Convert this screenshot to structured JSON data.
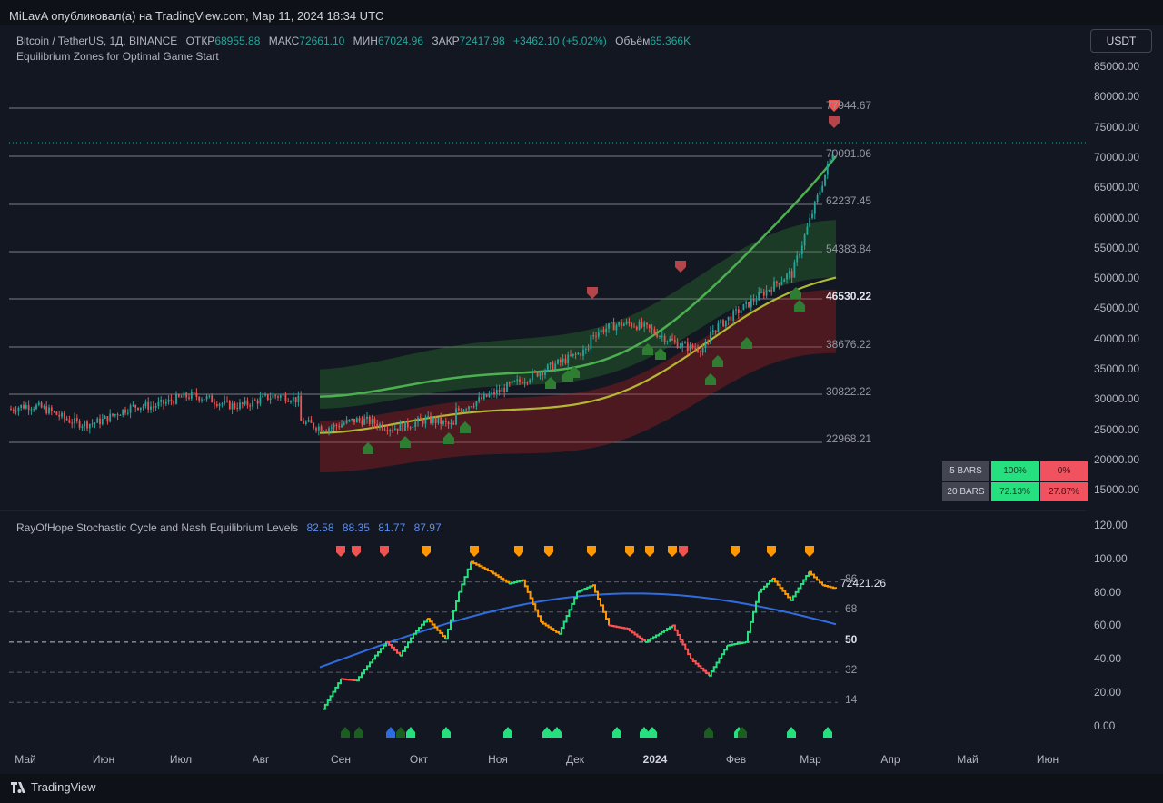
{
  "header": {
    "published": "MiLavA опубликовал(а) на TradingView.com, Мар 11, 2024 18:34 UTC"
  },
  "symbol": {
    "name": "Bitcoin / TetherUS, 1Д, BINANCE",
    "open_label": "ОТКР",
    "open": "68955.88",
    "high_label": "МАКС",
    "high": "72661.10",
    "low_label": "МИН",
    "low": "67024.96",
    "close_label": "ЗАКР",
    "close": "72417.98",
    "change": "+3462.10 (+5.02%)",
    "volume_label": "Объём",
    "volume": "65.366K",
    "indicator": "Equilibrium Zones for Optimal Game Start",
    "currency": "USDT"
  },
  "price_axis": [
    "85000.00",
    "80000.00",
    "75000.00",
    "70000.00",
    "65000.00",
    "60000.00",
    "55000.00",
    "50000.00",
    "45000.00",
    "40000.00",
    "35000.00",
    "30000.00",
    "25000.00",
    "20000.00",
    "15000.00"
  ],
  "levels": [
    "77944.67",
    "70091.06",
    "62237.45",
    "54383.84",
    "46530.22",
    "38676.22",
    "30822.22",
    "22968.21"
  ],
  "stats": {
    "rows": [
      {
        "label": "5 BARS",
        "win": "100%",
        "loss": "0%"
      },
      {
        "label": "20 BARS",
        "win": "72.13%",
        "loss": "27.87%"
      }
    ]
  },
  "oscillator": {
    "name": "RayOfHope Stochastic Cycle and Nash Equilibrium Levels",
    "values": [
      "82.58",
      "88.35",
      "81.77",
      "87.97"
    ],
    "axis": [
      "120.00",
      "100.00",
      "80.00",
      "60.00",
      "40.00",
      "20.00",
      "0.00"
    ],
    "levels": [
      "86",
      "68",
      "50",
      "32",
      "14"
    ],
    "price_label": "72421.26"
  },
  "time_axis": [
    "Май",
    "Июн",
    "Июл",
    "Авг",
    "Сен",
    "Окт",
    "Ноя",
    "Дек",
    "2024",
    "Фев",
    "Мар",
    "Апр",
    "Май",
    "Июн"
  ],
  "footer": {
    "brand": "TradingView"
  },
  "colors": {
    "background": "#131722",
    "up": "#26a69a",
    "down": "#ef5350",
    "green_band": "#2e7d32",
    "red_band": "#b71c1c",
    "stoch_green": "#26e07f",
    "stoch_orange": "#ff9800",
    "stoch_red": "#ff5252",
    "signal_blue": "#2f6ce0"
  }
}
